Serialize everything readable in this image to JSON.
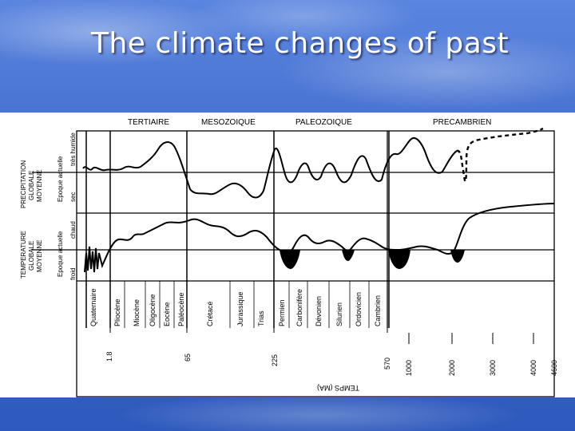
{
  "slide": {
    "title": "The climate changes of past"
  },
  "diagram": {
    "eras": [
      "TERTIAIRE",
      "MESOZOIQUE",
      "PALEOZOIQUE",
      "PRECAMBRIEN"
    ],
    "precip_axis": {
      "title_lines": [
        "PRECIPITATION",
        "GLOBALE",
        "MOYENNE"
      ],
      "current_label": "Epoque actuelle",
      "high_label": "très humide",
      "low_label": "sec"
    },
    "temp_axis": {
      "title_lines": [
        "TEMPERATURE",
        "GLOBALE",
        "MOYENNE"
      ],
      "current_label": "Epoque actuelle",
      "high_label": "chaud",
      "low_label": "froid"
    },
    "periods": [
      "Quaternaire",
      "Pliocène",
      "Miocène",
      "Oligocène",
      "Eocène",
      "Paléocène",
      "Crétacé",
      "Jurassique",
      "Trias",
      "Permien",
      "Carbonifère",
      "Dévonien",
      "Silurien",
      "Ordovicien",
      "Cambrien"
    ],
    "time_ticks": [
      "1.8",
      "65",
      "225",
      "570",
      "1000",
      "2000",
      "3000",
      "4000",
      "4600"
    ],
    "time_axis_label": "TEMPS (MA)"
  }
}
